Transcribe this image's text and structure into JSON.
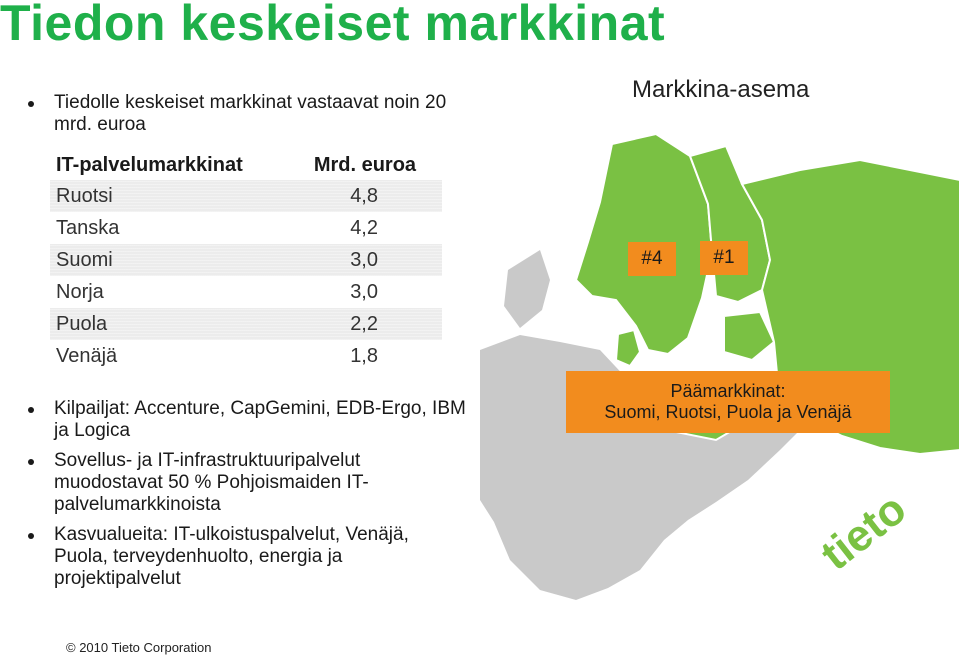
{
  "title": "Tiedon keskeiset markkinat",
  "intro_bullet": "Tiedolle keskeiset markkinat vastaavat noin 20 mrd. euroa",
  "table": {
    "header_market": "IT-palvelumarkkinat",
    "header_value": "Mrd. euroa",
    "rows": [
      {
        "country": "Ruotsi",
        "value": "4,8"
      },
      {
        "country": "Tanska",
        "value": "4,2"
      },
      {
        "country": "Suomi",
        "value": "3,0"
      },
      {
        "country": "Norja",
        "value": "3,0"
      },
      {
        "country": "Puola",
        "value": "2,2"
      },
      {
        "country": "Venäjä",
        "value": "1,8"
      }
    ]
  },
  "bullets": [
    "Kilpailjat: Accenture, CapGemini, EDB-Ergo, IBM ja Logica",
    "Sovellus- ja IT-infrastruktuuripalvelut muodostavat 50 % Pohjoismaiden IT-palvelumarkkinoista",
    "Kasvualueita: IT-ulkoistuspalvelut, Venäjä, Puola, terveydenhuolto, energia ja projektipalvelut"
  ],
  "map": {
    "title": "Markkina-asema",
    "rank_left": "#4",
    "rank_right": "#1",
    "main_markets_title": "Päämarkkinat:",
    "main_markets_list": "Suomi, Ruotsi, Puola ja Venäjä"
  },
  "logo_text": "tieto",
  "copyright": "© 2010 Tieto Corporation",
  "colors": {
    "title_green": "#1fb04a",
    "map_green": "#7ac143",
    "map_grey": "#c9c9c9",
    "sea": "#ffffff",
    "accent_orange": "#f28c1e"
  }
}
